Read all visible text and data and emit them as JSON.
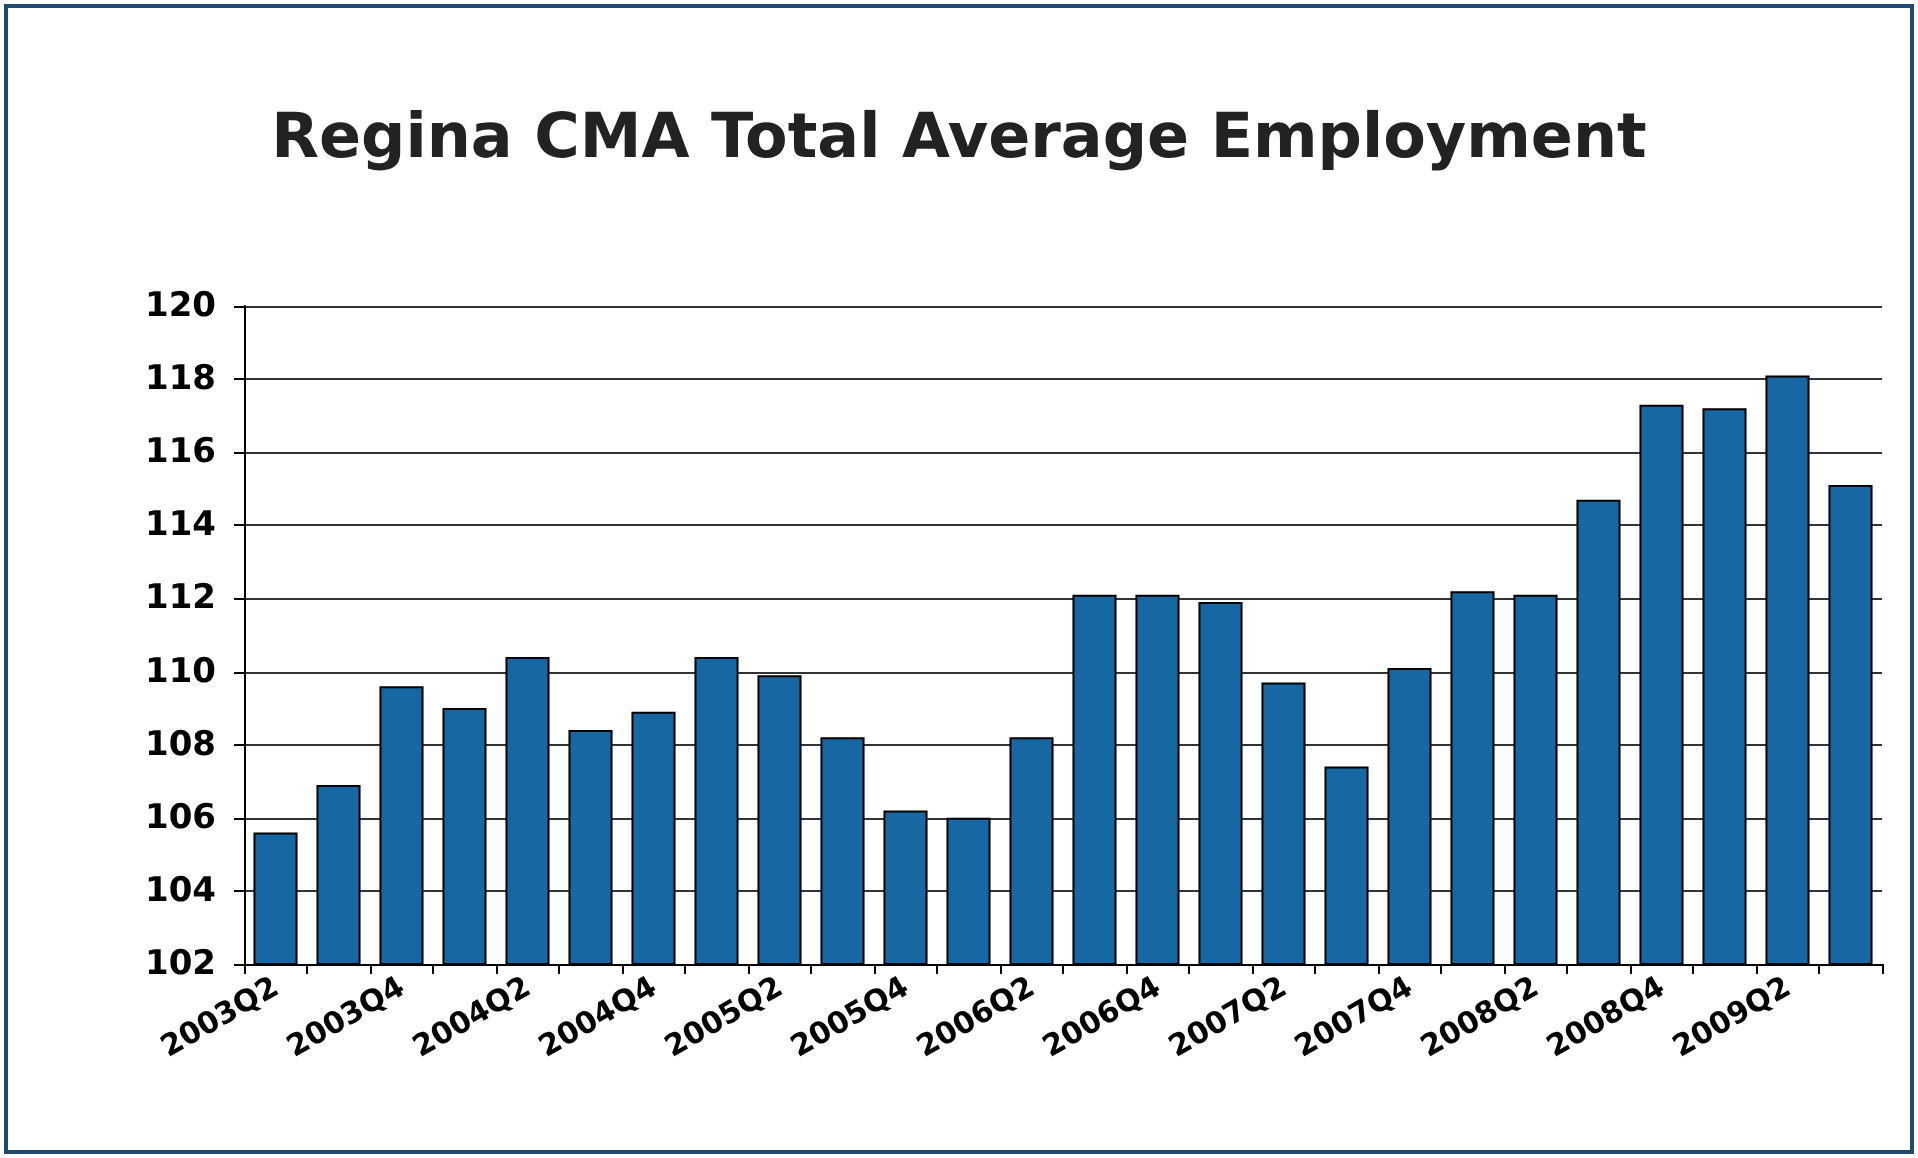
{
  "chart_data": {
    "type": "bar",
    "title": "Regina CMA Total Average Employment",
    "categories": [
      "2003Q2",
      null,
      "2003Q4",
      null,
      "2004Q2",
      null,
      "2004Q4",
      null,
      "2005Q2",
      null,
      "2005Q4",
      null,
      "2006Q2",
      null,
      "2006Q4",
      null,
      "2007Q2",
      null,
      "2007Q4",
      null,
      "2008Q2",
      null,
      "2008Q4",
      null,
      "2009Q2",
      null
    ],
    "values": [
      105.6,
      106.9,
      109.6,
      109.0,
      110.4,
      108.4,
      108.9,
      110.4,
      109.9,
      108.2,
      106.2,
      106.0,
      108.2,
      112.1,
      112.1,
      111.9,
      109.7,
      107.4,
      110.1,
      112.2,
      112.1,
      114.7,
      117.3,
      117.2,
      118.1,
      115.1
    ],
    "color": "#1767a3",
    "ylim": [
      102,
      120
    ],
    "yticks": [
      102,
      104,
      106,
      108,
      110,
      112,
      114,
      116,
      118,
      120
    ],
    "grid": "y"
  }
}
